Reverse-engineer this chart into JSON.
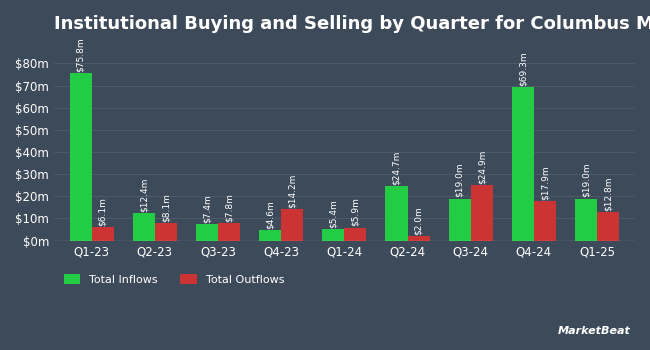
{
  "title": "Institutional Buying and Selling by Quarter for Columbus McKinnon",
  "quarters": [
    "Q1-23",
    "Q2-23",
    "Q3-23",
    "Q4-23",
    "Q1-24",
    "Q2-24",
    "Q3-24",
    "Q4-24",
    "Q1-25"
  ],
  "inflows": [
    75.8,
    12.4,
    7.4,
    4.6,
    5.4,
    24.7,
    19.0,
    69.3,
    19.0
  ],
  "outflows": [
    6.1,
    8.1,
    7.8,
    14.2,
    5.9,
    2.0,
    24.9,
    17.9,
    12.8
  ],
  "inflow_labels": [
    "$75.8m",
    "$12.4m",
    "$7.4m",
    "$4.6m",
    "$5.4m",
    "$24.7m",
    "$19.0m",
    "$69.3m",
    "$19.0m"
  ],
  "outflow_labels": [
    "$6.1m",
    "$8.1m",
    "$7.8m",
    "$14.2m",
    "$5.9m",
    "$2.0m",
    "$24.9m",
    "$17.9m",
    "$12.8m"
  ],
  "inflow_color": "#22cc44",
  "outflow_color": "#cc3333",
  "background_color": "#3d4a5a",
  "text_color": "#ffffff",
  "grid_color": "#4d5a6a",
  "ylabel_ticks": [
    "$0m",
    "$10m",
    "$20m",
    "$30m",
    "$40m",
    "$50m",
    "$60m",
    "$70m",
    "$80m"
  ],
  "ylim": [
    0,
    88
  ],
  "yticks": [
    0,
    10,
    20,
    30,
    40,
    50,
    60,
    70,
    80
  ],
  "legend_inflow": "Total Inflows",
  "legend_outflow": "Total Outflows",
  "bar_width": 0.35,
  "label_fontsize": 6.5,
  "title_fontsize": 13,
  "tick_fontsize": 8.5,
  "legend_fontsize": 8
}
